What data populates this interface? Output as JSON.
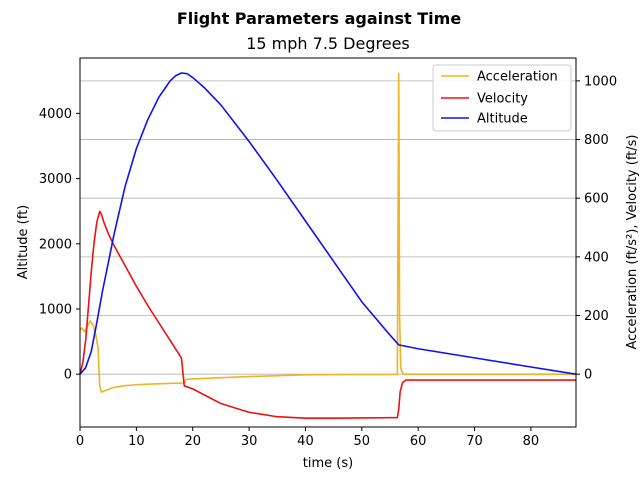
{
  "chart_data": {
    "type": "line",
    "title": "Flight Parameters against Time",
    "subtitle": "15 mph 7.5 Degrees",
    "xlabel": "time (s)",
    "ylabel_left": "Altitude (ft)",
    "ylabel_right": "Acceleration (ft/s²), Velocity (ft/s)",
    "xlim": [
      0,
      88
    ],
    "ylim_left": [
      -810,
      4850
    ],
    "ylim_right": [
      -180,
      1078
    ],
    "xticks": [
      0,
      10,
      20,
      30,
      40,
      50,
      60,
      70,
      80
    ],
    "yticks_left": [
      0,
      1000,
      2000,
      3000,
      4000
    ],
    "yticks_right": [
      0,
      200,
      400,
      600,
      800,
      1000
    ],
    "grid": "horizontal lines at right-axis ticks",
    "legend_position": "top-right",
    "colors": {
      "acceleration": "#f0b323",
      "velocity": "#ee1111",
      "altitude": "#1111ee"
    },
    "series": [
      {
        "name": "Acceleration",
        "axis": "right",
        "x": [
          0,
          0.3,
          0.8,
          1.3,
          1.8,
          2.3,
          2.8,
          3.2,
          3.5,
          3.8,
          4.2,
          5,
          6,
          8,
          10,
          12,
          15,
          18.5,
          18.8,
          20,
          25,
          30,
          40,
          50,
          56.3,
          56.55,
          56.7,
          56.9,
          57.2,
          57.6,
          58.5,
          60,
          70,
          80,
          88
        ],
        "y": [
          150,
          158,
          145,
          162,
          182,
          168,
          135,
          90,
          -40,
          -61,
          -58,
          -52,
          -45,
          -39,
          -36,
          -34,
          -32,
          -30,
          -18,
          -16,
          -12,
          -8,
          -2,
          -1,
          -1,
          1025,
          200,
          20,
          5,
          0,
          0,
          0,
          0,
          0,
          0
        ]
      },
      {
        "name": "Velocity",
        "axis": "right",
        "x": [
          0,
          0.5,
          1,
          1.5,
          2,
          2.5,
          3,
          3.5,
          3.8,
          4.2,
          5,
          6,
          8,
          10,
          12,
          14,
          16,
          18,
          18.5,
          20,
          22,
          25,
          30,
          35,
          40,
          45,
          50,
          56.3,
          56.55,
          56.8,
          57.2,
          57.8,
          60,
          70,
          80,
          88
        ],
        "y": [
          0,
          40,
          115,
          230,
          350,
          450,
          520,
          555,
          545,
          520,
          480,
          440,
          370,
          300,
          235,
          175,
          115,
          55,
          -40,
          -50,
          -70,
          -100,
          -130,
          -145,
          -150,
          -150,
          -149,
          -148,
          -120,
          -60,
          -30,
          -20,
          -20,
          -20,
          -20,
          -20
        ]
      },
      {
        "name": "Altitude",
        "axis": "left",
        "x": [
          0,
          1,
          2,
          3,
          4,
          5,
          6,
          8,
          10,
          12,
          14,
          16,
          17,
          18,
          19,
          20,
          22,
          25,
          30,
          35,
          40,
          45,
          50,
          55,
          56.55,
          60,
          70,
          80,
          88
        ],
        "y": [
          0,
          100,
          350,
          800,
          1280,
          1700,
          2130,
          2880,
          3460,
          3900,
          4250,
          4500,
          4580,
          4620,
          4610,
          4550,
          4400,
          4130,
          3570,
          2970,
          2350,
          1730,
          1110,
          600,
          450,
          390,
          250,
          110,
          0
        ]
      }
    ]
  }
}
